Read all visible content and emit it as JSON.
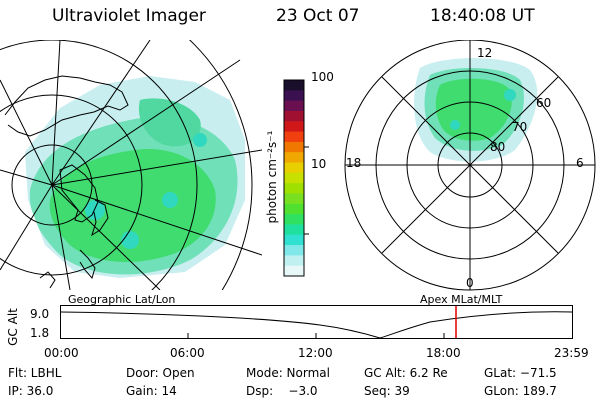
{
  "header": {
    "title": "Ultraviolet Imager",
    "date": "23 Oct 07",
    "time": "18:40:08 UT"
  },
  "geo_panel": {
    "caption": "Geographic Lat/Lon"
  },
  "polar_panel": {
    "caption": "Apex MLat/MLT",
    "mlt_labels": {
      "top": "12",
      "left": "18",
      "right": "6",
      "bottom": "0"
    },
    "lat_labels": [
      "60",
      "70",
      "80"
    ]
  },
  "colorbar": {
    "label": "photon cm⁻²s⁻¹",
    "ticks": [
      "100",
      "10"
    ],
    "colors": [
      "#1a0f2a",
      "#3a1050",
      "#6a1050",
      "#a01030",
      "#d01818",
      "#f04010",
      "#f07800",
      "#f0a800",
      "#e8d000",
      "#c8e000",
      "#a0e000",
      "#78e020",
      "#50e030",
      "#30e060",
      "#20e0a0",
      "#30e0d0",
      "#80e8e8",
      "#c0f0f0",
      "#e8f8f8"
    ]
  },
  "altitude_plot": {
    "ylabel": "GC Alt",
    "y_ticks": [
      "9.0",
      "1.8"
    ],
    "x_ticks": [
      "00:00",
      "06:00",
      "12:00",
      "18:00",
      "23:59"
    ],
    "marker_color": "#e00000"
  },
  "footer": {
    "row1": {
      "filter": "Flt: LBHL",
      "door": "Door: Open",
      "mode": "Mode: Normal",
      "gc_alt": "GC Alt: 6.2 Re",
      "glat": "GLat: −71.5"
    },
    "row2": {
      "ip": "IP: 36.0",
      "gain": "Gain: 14",
      "dsp": "Dsp:    −3.0",
      "seq": "Seq: 39",
      "glon": "GLon: 189.7"
    }
  }
}
